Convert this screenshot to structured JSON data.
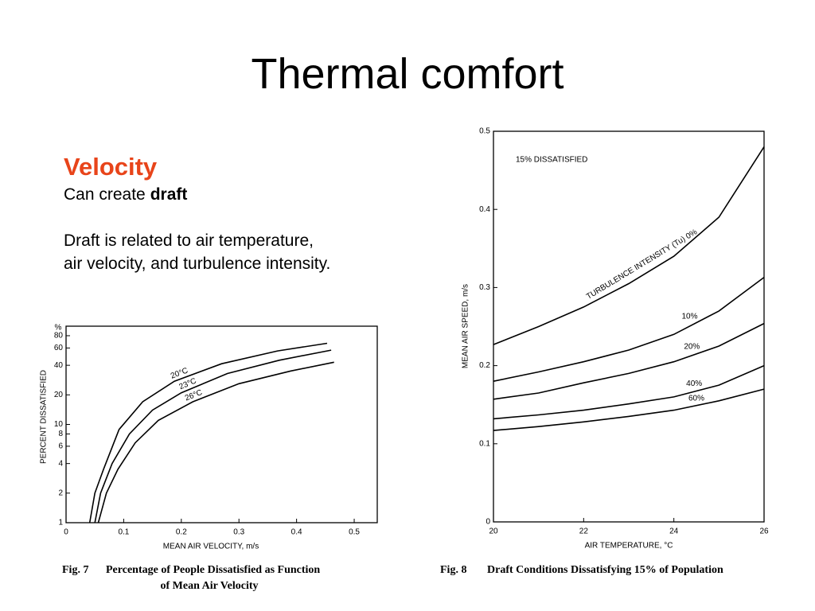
{
  "title": "Thermal comfort",
  "text": {
    "heading": "Velocity",
    "lead": "Can create",
    "lead_bold": "draft",
    "paragraph": [
      "Draft is related to air temperature,",
      "air velocity, and turbulence intensity."
    ]
  },
  "chart_data": [
    {
      "type": "line",
      "figure": "Fig. 7",
      "caption": [
        "Percentage of People Dissatisfied as Function",
        "of Mean Air Velocity"
      ],
      "x_label": "MEAN AIR VELOCITY, m/s",
      "y_label": "PERCENT DISSATISFIED",
      "y_unit": "%",
      "log_y": true,
      "xlim": [
        0,
        0.54
      ],
      "ylim": [
        1,
        100
      ],
      "xticks": [
        0,
        0.1,
        0.2,
        0.3,
        0.4,
        0.5
      ],
      "yticks": [
        1,
        2,
        4,
        6,
        8,
        10,
        20,
        40,
        60,
        80
      ],
      "series": [
        {
          "name": "20°C",
          "color": "#000000",
          "x": [
            0.041,
            0.05,
            0.065,
            0.092,
            0.133,
            0.188,
            0.27,
            0.367,
            0.453
          ],
          "values": [
            1,
            2,
            3.5,
            8.9,
            17,
            27.5,
            41.5,
            56,
            67
          ]
        },
        {
          "name": "23°C",
          "color": "#000000",
          "x": [
            0.05,
            0.06,
            0.08,
            0.11,
            0.15,
            0.2,
            0.28,
            0.37,
            0.46
          ],
          "values": [
            1,
            2,
            4,
            8,
            14,
            21,
            33,
            45,
            57
          ]
        },
        {
          "name": "26°C",
          "color": "#000000",
          "x": [
            0.056,
            0.07,
            0.09,
            0.12,
            0.16,
            0.22,
            0.3,
            0.39,
            0.465
          ],
          "values": [
            1,
            2,
            3.5,
            6.5,
            11,
            17,
            26,
            35,
            43
          ]
        }
      ]
    },
    {
      "type": "line",
      "figure": "Fig. 8",
      "caption": [
        "Draft Conditions Dissatisfying 15% of Population"
      ],
      "x_label": "AIR TEMPERATURE,  °C",
      "y_label": "MEAN AIR SPEED,  m/s",
      "annotation": "15% DISSATISFIED",
      "log_y": false,
      "xlim": [
        20,
        26
      ],
      "ylim": [
        0,
        0.5
      ],
      "xticks": [
        20,
        22,
        24,
        26
      ],
      "yticks": [
        0,
        0.1,
        0.2,
        0.3,
        0.4,
        0.5
      ],
      "series": [
        {
          "name": "TURBULENCE INTENSITY (Tu) 0%",
          "color": "#000000",
          "x": [
            20,
            21,
            22,
            23,
            24,
            25,
            26
          ],
          "values": [
            0.227,
            0.25,
            0.275,
            0.305,
            0.34,
            0.39,
            0.48
          ]
        },
        {
          "name": "10%",
          "color": "#000000",
          "x": [
            20,
            21,
            22,
            23,
            24,
            25,
            26
          ],
          "values": [
            0.18,
            0.192,
            0.205,
            0.22,
            0.24,
            0.27,
            0.313
          ]
        },
        {
          "name": "20%",
          "color": "#000000",
          "x": [
            20,
            21,
            22,
            23,
            24,
            25,
            26
          ],
          "values": [
            0.157,
            0.165,
            0.178,
            0.19,
            0.205,
            0.225,
            0.254
          ]
        },
        {
          "name": "40%",
          "color": "#000000",
          "x": [
            20,
            21,
            22,
            23,
            24,
            25,
            26
          ],
          "values": [
            0.132,
            0.137,
            0.143,
            0.151,
            0.16,
            0.175,
            0.2
          ]
        },
        {
          "name": "60%",
          "color": "#000000",
          "x": [
            20,
            21,
            22,
            23,
            24,
            25,
            26
          ],
          "values": [
            0.117,
            0.122,
            0.128,
            0.135,
            0.143,
            0.155,
            0.17
          ]
        }
      ]
    }
  ]
}
